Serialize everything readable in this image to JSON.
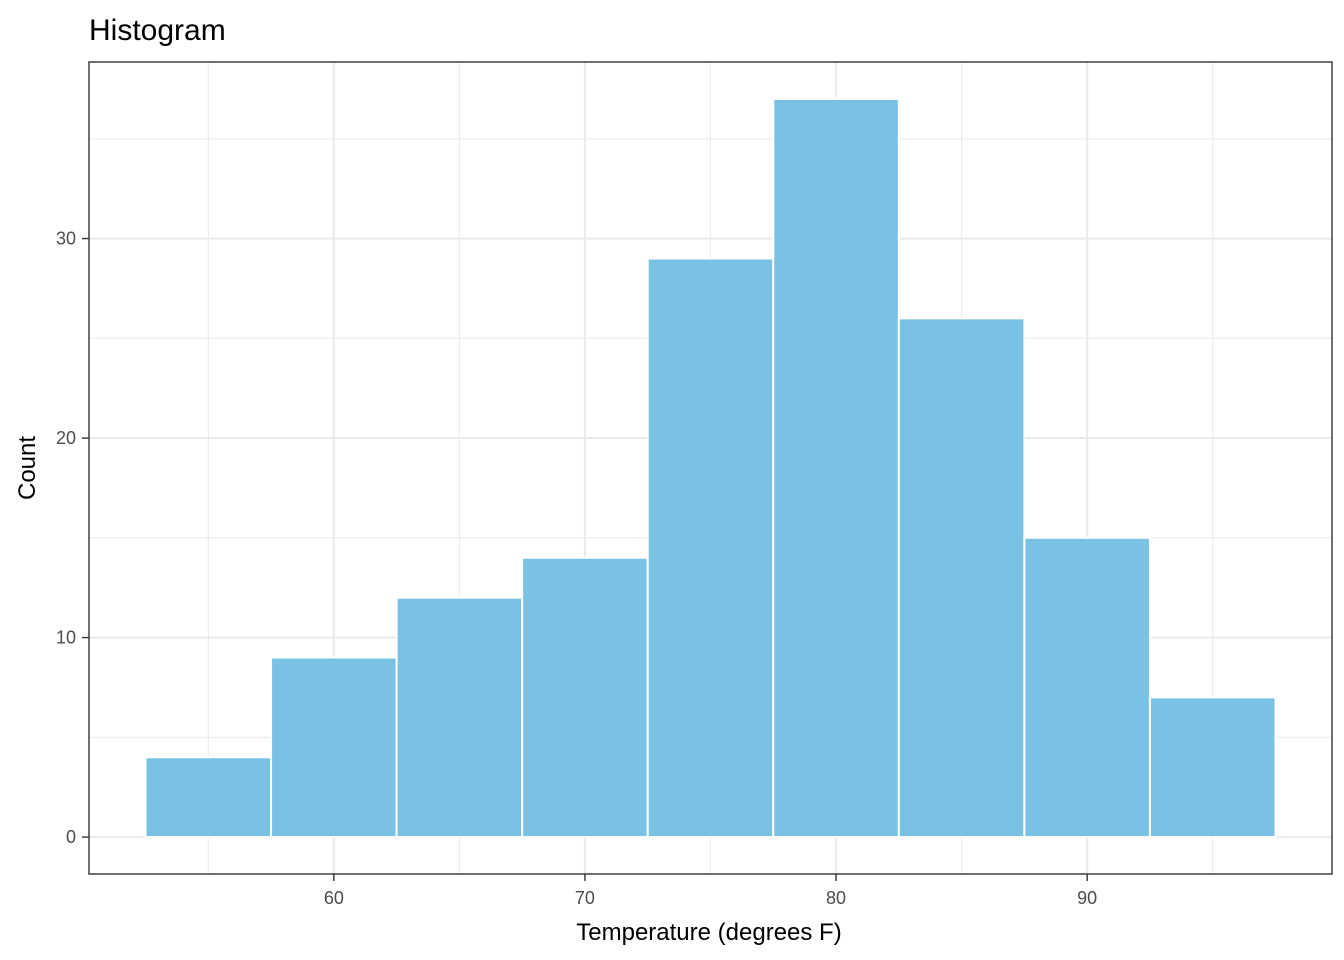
{
  "chart_data": {
    "type": "bar",
    "title": "Histogram",
    "xlabel": "Temperature (degrees F)",
    "ylabel": "Count",
    "bin_width": 5,
    "bins": [
      {
        "start": 52.5,
        "end": 57.5,
        "count": 4
      },
      {
        "start": 57.5,
        "end": 62.5,
        "count": 9
      },
      {
        "start": 62.5,
        "end": 67.5,
        "count": 12
      },
      {
        "start": 67.5,
        "end": 72.5,
        "count": 14
      },
      {
        "start": 72.5,
        "end": 77.5,
        "count": 29
      },
      {
        "start": 77.5,
        "end": 82.5,
        "count": 37
      },
      {
        "start": 82.5,
        "end": 87.5,
        "count": 26
      },
      {
        "start": 87.5,
        "end": 92.5,
        "count": 15
      },
      {
        "start": 92.5,
        "end": 97.5,
        "count": 7
      }
    ],
    "xlim": [
      50.25,
      99.75
    ],
    "ylim": [
      -1.85,
      38.85
    ],
    "x_ticks": [
      60,
      70,
      80,
      90
    ],
    "y_ticks": [
      0,
      10,
      20,
      30
    ],
    "x_minor_ticks": [
      55,
      65,
      75,
      85,
      95
    ],
    "y_minor_ticks": [
      5,
      15,
      25,
      35
    ],
    "grid": true,
    "bar_color": "#7AC2E4",
    "bar_border_color": "#FFFFFF"
  }
}
